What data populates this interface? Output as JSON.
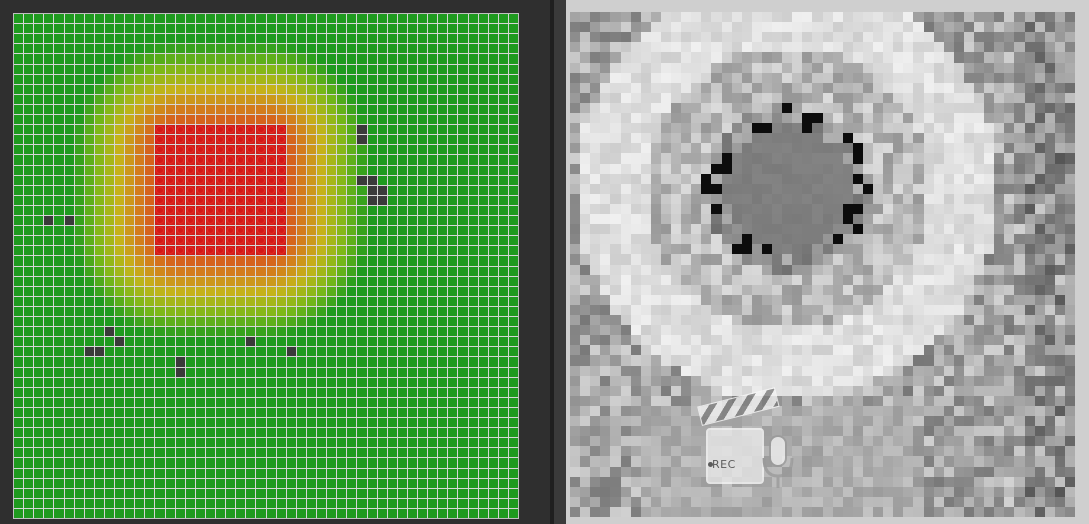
{
  "left_view": {
    "grid_size": 50,
    "colors": {
      "background": "#1e9a1e",
      "gridline": "#d6d6d6",
      "hot_dot": "#d31818",
      "marker": "#3a3a3a",
      "ramp": [
        "#1e9a1e",
        "#7ab818",
        "#c4b41a",
        "#d4781c",
        "#d6401c",
        "#cf1d1b"
      ]
    },
    "markers": [
      [
        11,
        34
      ],
      [
        12,
        34
      ],
      [
        16,
        34
      ],
      [
        16,
        35
      ],
      [
        17,
        35
      ],
      [
        17,
        36
      ],
      [
        18,
        36
      ],
      [
        18,
        35
      ],
      [
        20,
        3
      ],
      [
        20,
        5
      ],
      [
        31,
        9
      ],
      [
        33,
        7
      ],
      [
        33,
        8
      ],
      [
        32,
        10
      ],
      [
        32,
        23
      ],
      [
        33,
        27
      ],
      [
        34,
        16
      ],
      [
        35,
        16
      ]
    ]
  },
  "right_view": {
    "grid_size": 50,
    "colors": {
      "base": "#c4c4c4",
      "ring": "#e2e2e2",
      "pupil": "#7a7a7a",
      "dark_pixel": "#0c0c0c"
    }
  },
  "rec_badge": {
    "label": "REC",
    "icon": "clapperboard-icon",
    "mic_icon": "microphone-icon"
  }
}
